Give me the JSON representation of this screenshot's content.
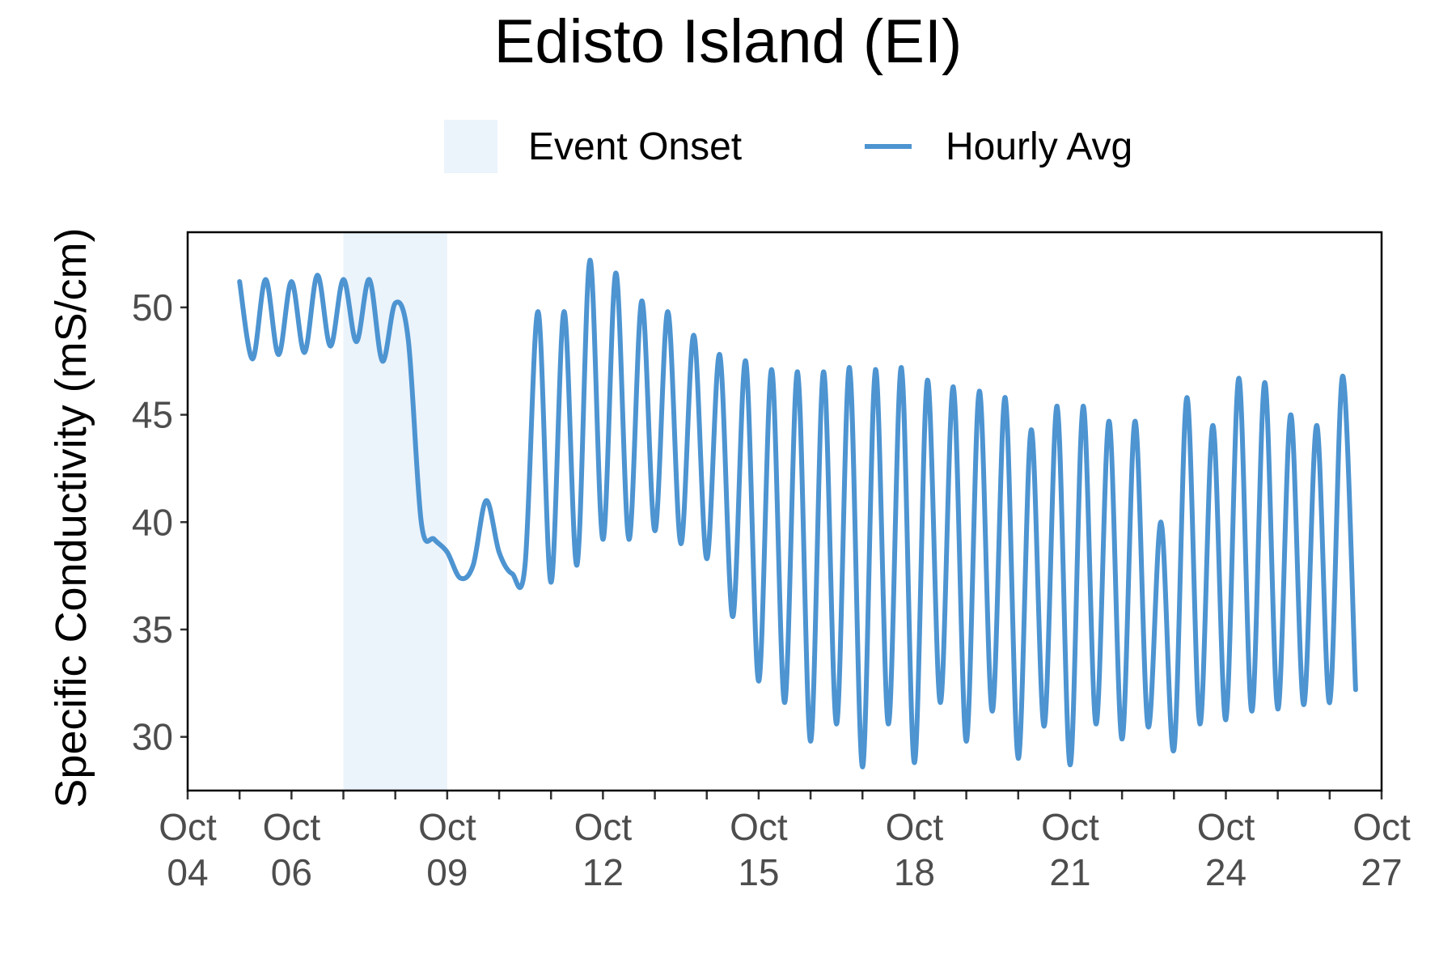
{
  "chart_data": {
    "type": "line",
    "title": "Edisto Island (EI)",
    "xlabel": "",
    "ylabel": "Specific Conductivity (mS/cm)",
    "x_start": "2024-10-05 00:00",
    "x_end": "2024-10-26 12:00",
    "xlim": [
      "Oct 04",
      "Oct 27"
    ],
    "ylim": [
      27.5,
      53.5
    ],
    "y_ticks": [
      30,
      35,
      40,
      45,
      50
    ],
    "x_ticks": [
      {
        "line1": "Oct",
        "line2": "04",
        "day": 4
      },
      {
        "line1": "Oct",
        "line2": "06",
        "day": 6
      },
      {
        "line1": "Oct",
        "line2": "09",
        "day": 9
      },
      {
        "line1": "Oct",
        "line2": "12",
        "day": 12
      },
      {
        "line1": "Oct",
        "line2": "15",
        "day": 15
      },
      {
        "line1": "Oct",
        "line2": "18",
        "day": 18
      },
      {
        "line1": "Oct",
        "line2": "21",
        "day": 21
      },
      {
        "line1": "Oct",
        "line2": "24",
        "day": 24
      },
      {
        "line1": "Oct",
        "line2": "27",
        "day": 27
      }
    ],
    "event_onset": {
      "start": "Oct 07",
      "end": "Oct 09"
    },
    "legend": {
      "placement": "top",
      "entries": [
        "Event Onset",
        "Hourly Avg"
      ]
    },
    "grid": false,
    "series": [
      {
        "name": "Hourly Avg",
        "color": "#4d94d1",
        "values": [
          51.2,
          47.6,
          51.3,
          47.8,
          51.2,
          47.9,
          51.5,
          48.2,
          51.3,
          48.4,
          51.3,
          47.5,
          50.2,
          48.5,
          40.0,
          39.2,
          38.6,
          37.4,
          38.0,
          41.0,
          38.6,
          37.6,
          38.0,
          49.8,
          37.2,
          49.8,
          38.0,
          52.2,
          39.2,
          51.6,
          39.2,
          50.3,
          39.6,
          49.8,
          39.0,
          48.7,
          38.3,
          47.8,
          35.6,
          47.5,
          32.6,
          47.1,
          31.6,
          47.0,
          29.8,
          47.0,
          30.6,
          47.2,
          28.6,
          47.1,
          30.6,
          47.2,
          28.8,
          46.6,
          31.6,
          46.3,
          29.8,
          46.1,
          31.2,
          45.8,
          29.0,
          44.3,
          30.5,
          45.4,
          28.7,
          45.4,
          30.6,
          44.7,
          29.9,
          44.7,
          30.5,
          40.0,
          29.4,
          45.8,
          30.6,
          44.5,
          30.8,
          46.7,
          31.2,
          46.5,
          31.3,
          45.0,
          31.5,
          44.5,
          31.6,
          46.8,
          32.2
        ]
      }
    ]
  }
}
